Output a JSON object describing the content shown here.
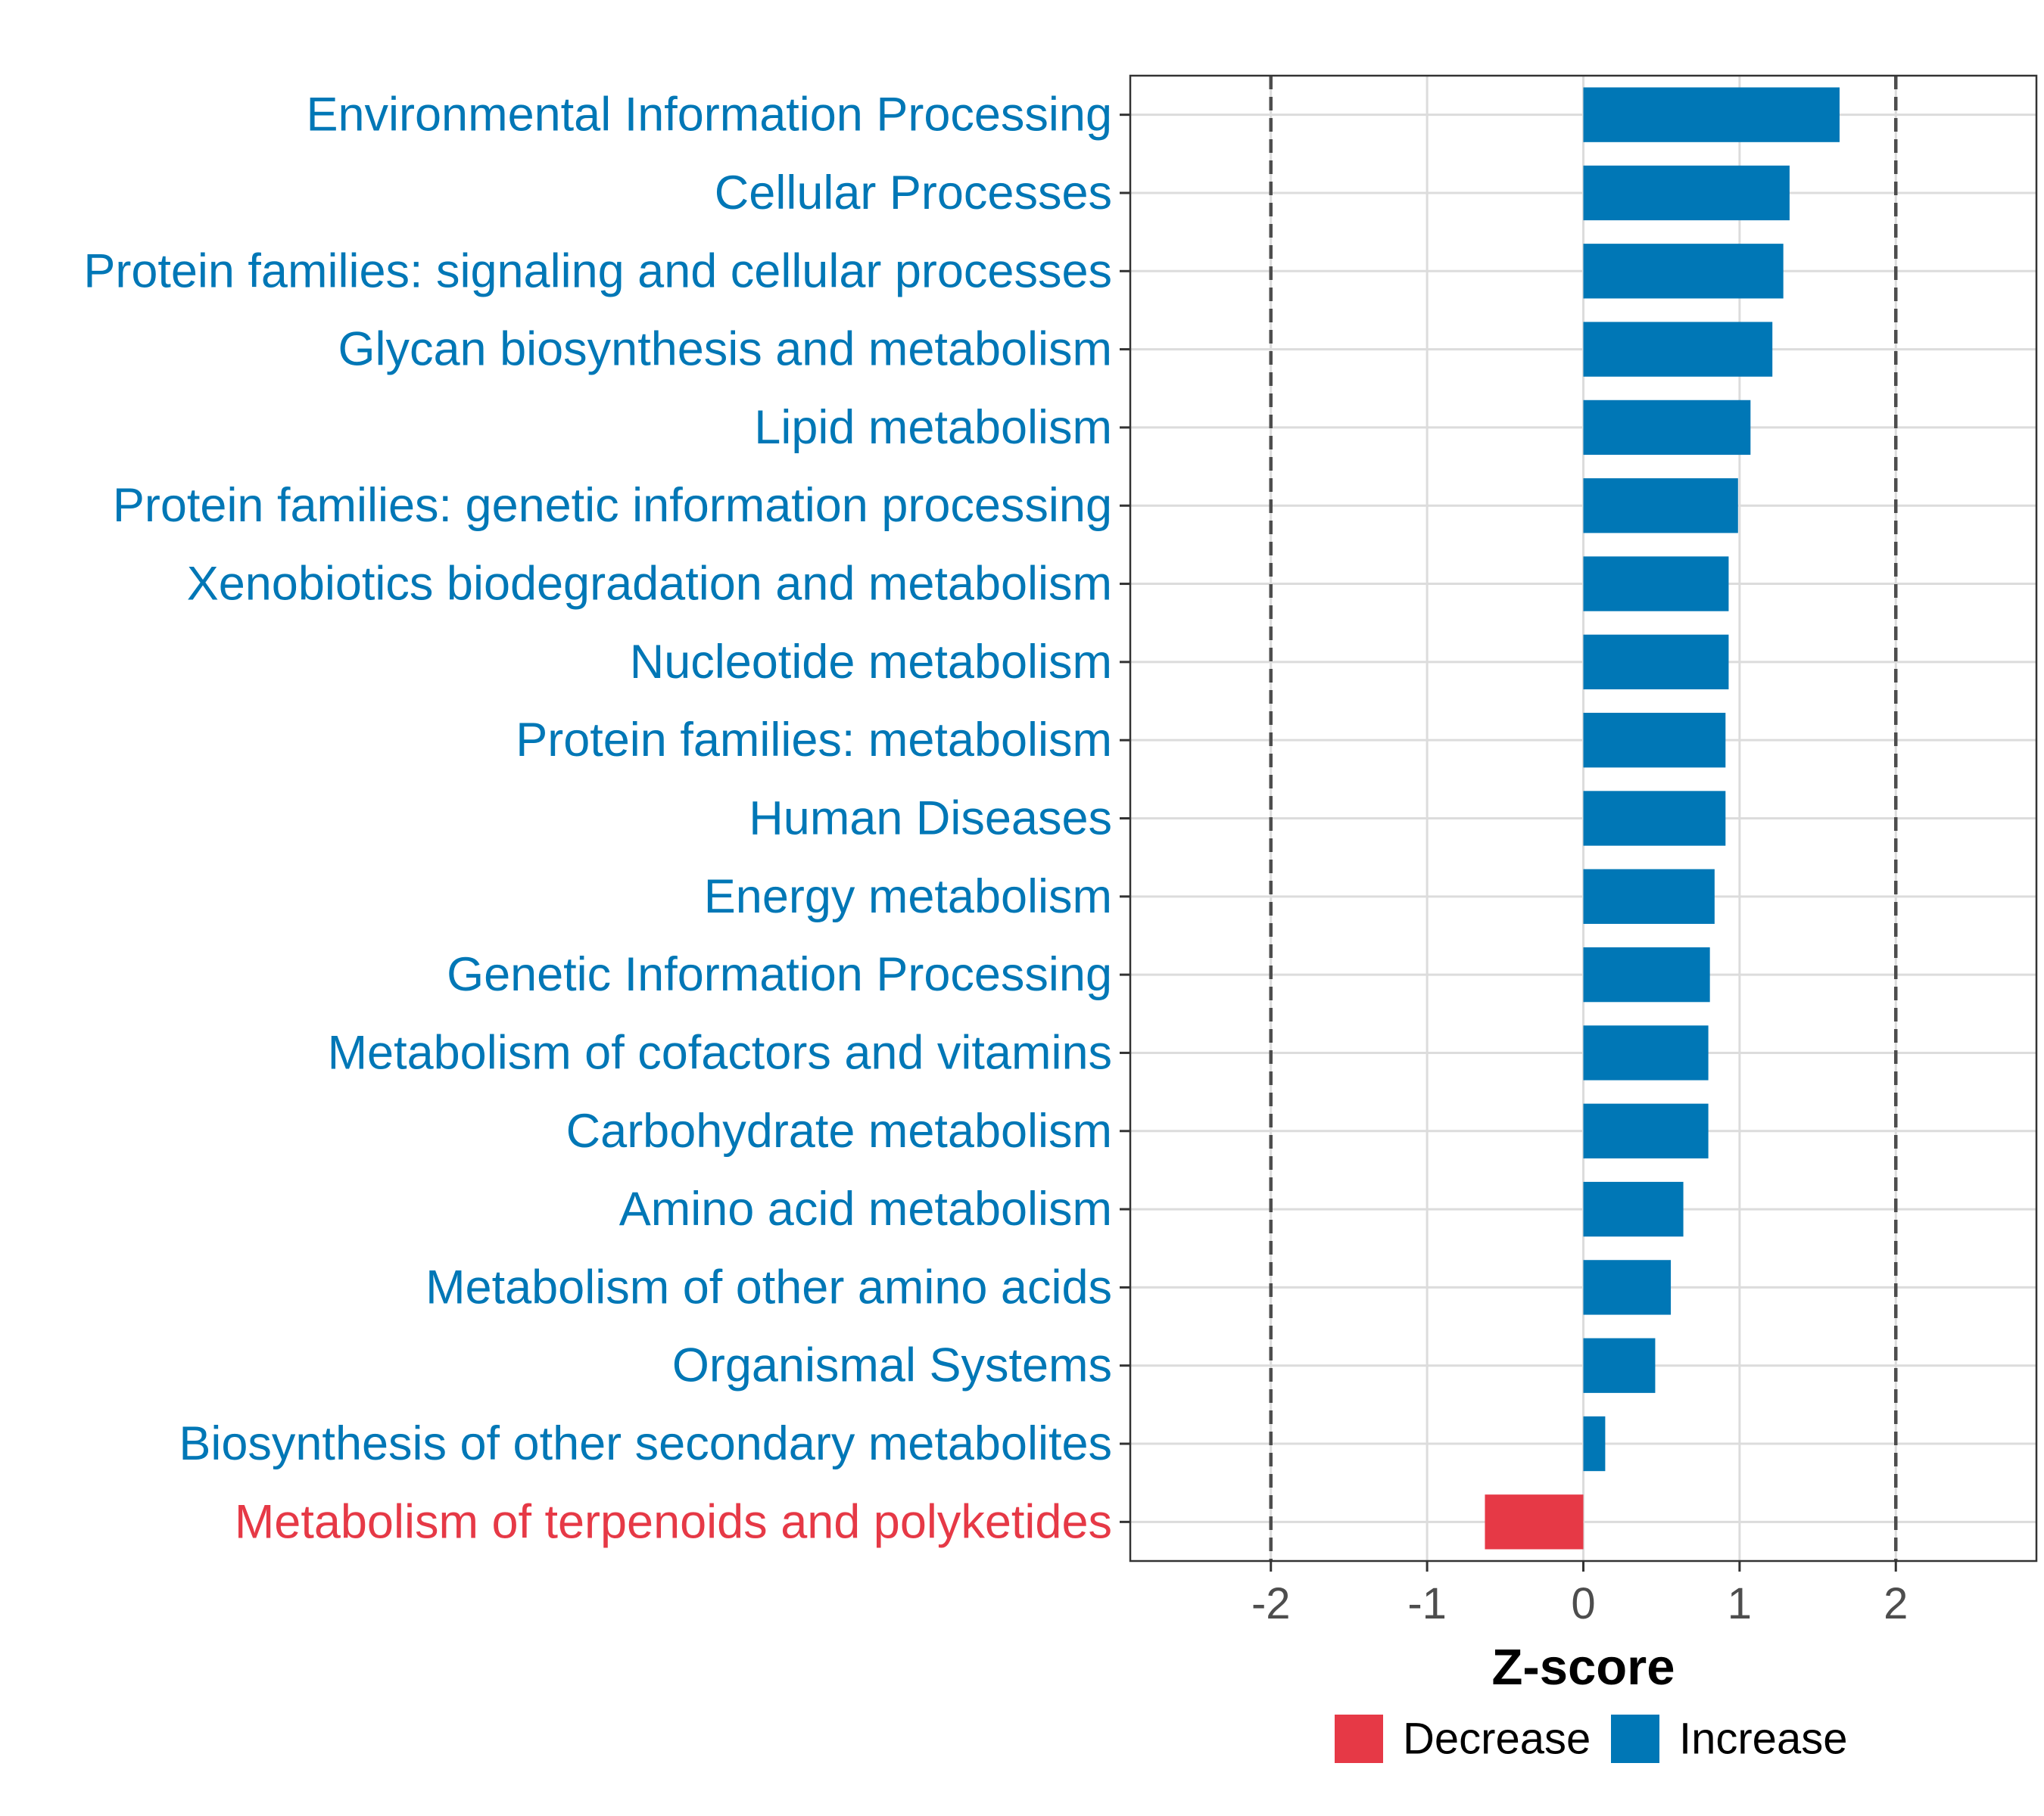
{
  "chart_data": {
    "type": "bar",
    "orientation": "horizontal",
    "xlabel": "Z-score",
    "xlim": [
      -2.9,
      2.9
    ],
    "xticks": [
      -2,
      -1,
      0,
      1,
      2
    ],
    "xtick_labels": [
      "-2",
      "-1",
      "0",
      "1",
      "2"
    ],
    "reference_lines": [
      -2,
      2
    ],
    "grid": true,
    "categories": [
      "Environmental Information Processing",
      "Cellular Processes",
      "Protein families: signaling and cellular processes",
      "Glycan biosynthesis and metabolism",
      "Lipid metabolism",
      "Protein families: genetic information processing",
      "Xenobiotics biodegradation and metabolism",
      "Nucleotide metabolism",
      "Protein families: metabolism",
      "Human Diseases",
      "Energy metabolism",
      "Genetic Information Processing",
      "Metabolism of cofactors and vitamins",
      "Carbohydrate metabolism",
      "Amino acid metabolism",
      "Metabolism of other amino acids",
      "Organismal Systems",
      "Biosynthesis of other secondary metabolites",
      "Metabolism of terpenoids and polyketides"
    ],
    "values": [
      1.64,
      1.32,
      1.28,
      1.21,
      1.07,
      0.99,
      0.93,
      0.93,
      0.91,
      0.91,
      0.84,
      0.81,
      0.8,
      0.8,
      0.64,
      0.56,
      0.46,
      0.14,
      -0.63
    ],
    "groups": [
      "Increase",
      "Increase",
      "Increase",
      "Increase",
      "Increase",
      "Increase",
      "Increase",
      "Increase",
      "Increase",
      "Increase",
      "Increase",
      "Increase",
      "Increase",
      "Increase",
      "Increase",
      "Increase",
      "Increase",
      "Increase",
      "Decrease"
    ],
    "legend": {
      "position": "bottom",
      "entries": [
        {
          "label": "Decrease",
          "color": "#e63946"
        },
        {
          "label": "Increase",
          "color": "#0077b6"
        }
      ]
    },
    "colors": {
      "Increase": "#0077b6",
      "Decrease": "#e63946"
    }
  }
}
